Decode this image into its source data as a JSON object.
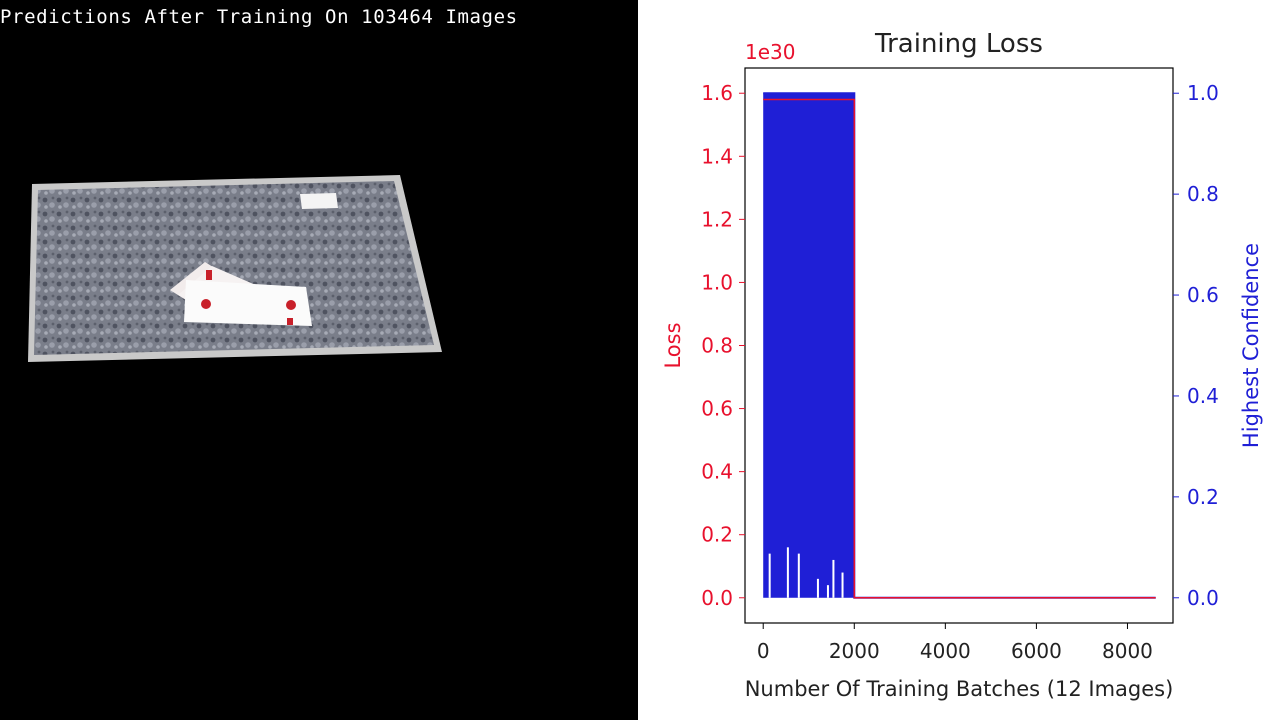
{
  "video": {
    "overlay_text": "Predictions After Training On 103464 Images"
  },
  "colors": {
    "loss": "#e8112d",
    "confidence": "#1f1fd6",
    "background_left": "#000000"
  },
  "chart_data": {
    "type": "line",
    "title": "Training Loss",
    "xlabel": "Number Of Training Batches (12 Images)",
    "ylabel_left": "Loss",
    "ylabel_right": "Highest Confidence",
    "left_axis_multiplier": "1e30",
    "xlim": [
      -400,
      9000
    ],
    "ylim_left": [
      -0.08,
      1.68
    ],
    "ylim_right": [
      -0.05,
      1.05
    ],
    "x_ticks": [
      0,
      2000,
      4000,
      6000,
      8000
    ],
    "x_tick_labels": [
      "0",
      "2000",
      "4000",
      "6000",
      "8000"
    ],
    "y_left_ticks": [
      0.0,
      0.2,
      0.4,
      0.6,
      0.8,
      1.0,
      1.2,
      1.4,
      1.6
    ],
    "y_left_tick_labels": [
      "0.0",
      "0.2",
      "0.4",
      "0.6",
      "0.8",
      "1.0",
      "1.2",
      "1.4",
      "1.6"
    ],
    "y_right_ticks": [
      0.0,
      0.2,
      0.4,
      0.6,
      0.8,
      1.0
    ],
    "y_right_tick_labels": [
      "0.0",
      "0.2",
      "0.4",
      "0.6",
      "0.8",
      "1.0"
    ],
    "series": [
      {
        "axis": "left",
        "x": [
          0,
          2000,
          2001,
          8620
        ],
        "y": [
          1.58,
          1.58,
          0.0,
          0.0
        ]
      },
      {
        "axis": "right",
        "x": [
          0,
          2000,
          2001,
          8620
        ],
        "y": [
          1.0,
          1.0,
          0.0,
          0.0
        ],
        "note_fill_range": [
          0,
          2000
        ]
      }
    ],
    "grid": false
  }
}
